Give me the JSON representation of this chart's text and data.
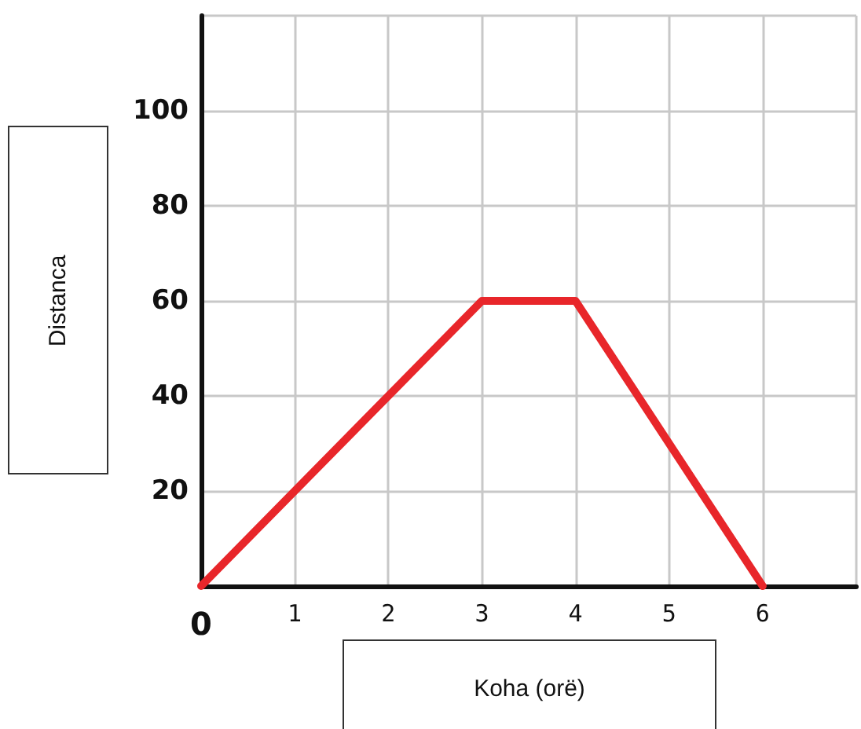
{
  "chart_data": {
    "type": "line",
    "xlabel": "Koha (orë)",
    "ylabel": "Distanca",
    "x": [
      0,
      3,
      4,
      6
    ],
    "series": [
      {
        "color": "#e8262a",
        "values": [
          0,
          60,
          60,
          0
        ]
      }
    ],
    "xlim": [
      0,
      7
    ],
    "xticks": [
      0,
      1,
      2,
      3,
      4,
      5,
      6,
      {
        "value": 7,
        "label": null
      }
    ],
    "ylim": [
      0,
      120
    ],
    "yticks": [
      {
        "value": 0,
        "label": null
      },
      20,
      40,
      60,
      80,
      100,
      {
        "value": 120,
        "label": null
      }
    ],
    "grid": true,
    "marker": "none",
    "line_style": "solid"
  }
}
